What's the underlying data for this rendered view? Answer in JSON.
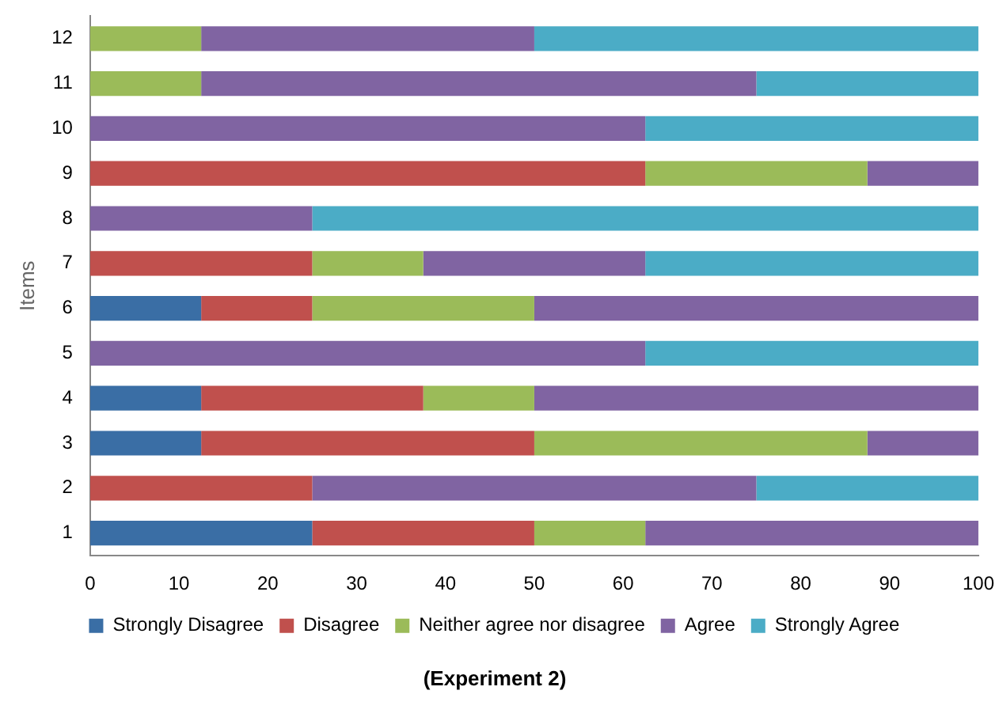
{
  "chart_data": {
    "type": "bar",
    "orientation": "horizontal",
    "stacked": true,
    "title": "(Experiment 2)",
    "ylabel": "Items",
    "categories": [
      "12",
      "11",
      "10",
      "9",
      "8",
      "7",
      "6",
      "5",
      "4",
      "3",
      "2",
      "1"
    ],
    "series": [
      {
        "name": "Strongly Disagree",
        "color": "#3a6ea5",
        "values": [
          0,
          0,
          0,
          0,
          0,
          0,
          12.5,
          0,
          12.5,
          12.5,
          0,
          25
        ]
      },
      {
        "name": "Disagree",
        "color": "#c0504d",
        "values": [
          0,
          0,
          0,
          62.5,
          0,
          25,
          12.5,
          0,
          25,
          37.5,
          25,
          25
        ]
      },
      {
        "name": "Neither agree nor disagree",
        "color": "#9bbb59",
        "values": [
          12.5,
          12.5,
          0,
          25,
          0,
          12.5,
          25,
          0,
          12.5,
          37.5,
          0,
          12.5
        ]
      },
      {
        "name": "Agree",
        "color": "#8064a2",
        "values": [
          37.5,
          62.5,
          62.5,
          12.5,
          25,
          25,
          50,
          62.5,
          50,
          12.5,
          50,
          37.5
        ]
      },
      {
        "name": "Strongly Agree",
        "color": "#4bacc6",
        "values": [
          50,
          25,
          37.5,
          0,
          75,
          37.5,
          0,
          37.5,
          0,
          0,
          25,
          0
        ]
      }
    ],
    "xlim": [
      0,
      100
    ],
    "xticks": [
      0,
      10,
      20,
      30,
      40,
      50,
      60,
      70,
      80,
      90,
      100
    ],
    "grid": false,
    "legend": "bottom"
  }
}
